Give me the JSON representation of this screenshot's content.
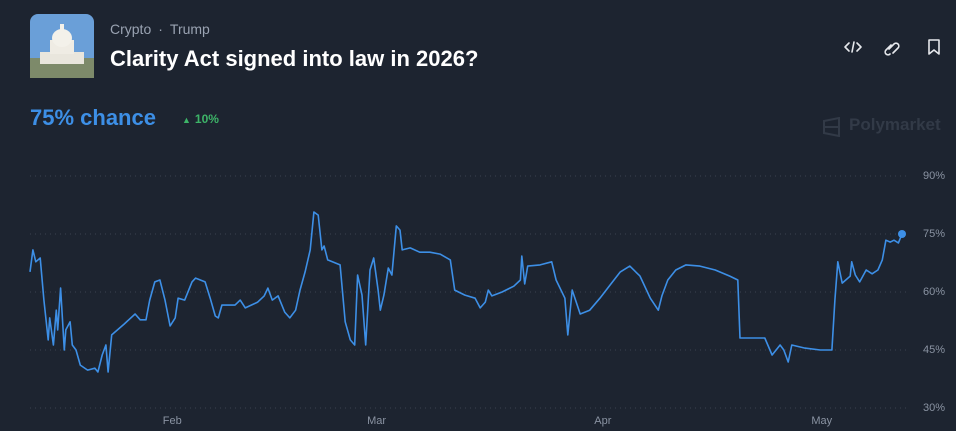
{
  "header": {
    "breadcrumb": [
      "Crypto",
      "Trump"
    ],
    "title": "Clarity Act signed into law in 2026?",
    "chance": "75% chance",
    "change": "10%"
  },
  "watermark": "Polymarket",
  "chart_data": {
    "type": "line",
    "color": "#3d8fe6",
    "grid": true,
    "xlim": [
      11.5,
      131
    ],
    "xticks": [
      {
        "value": 31,
        "label": "Feb"
      },
      {
        "value": 59,
        "label": "Mar"
      },
      {
        "value": 90,
        "label": "Apr"
      },
      {
        "value": 120,
        "label": "May"
      }
    ],
    "ylim": [
      30,
      90
    ],
    "yticks": [
      {
        "value": 30,
        "label": "30%"
      },
      {
        "value": 45,
        "label": "45%"
      },
      {
        "value": 60,
        "label": "60%"
      },
      {
        "value": 75,
        "label": "75%"
      },
      {
        "value": 90,
        "label": "90%"
      }
    ],
    "x": [
      11.5,
      11.9,
      12.3,
      12.9,
      13.4,
      14.0,
      14.2,
      14.7,
      15.1,
      15.3,
      15.7,
      16.2,
      16.4,
      17.0,
      17.3,
      17.8,
      18.4,
      19.4,
      20.4,
      20.8,
      21.4,
      21.9,
      22.2,
      22.7,
      24.4,
      25.9,
      26.6,
      27.4,
      27.9,
      28.6,
      29.3,
      30.0,
      30.7,
      31.4,
      31.8,
      32.7,
      33.7,
      34.2,
      35.5,
      36.2,
      36.9,
      37.3,
      37.8,
      39.6,
      40.3,
      41.0,
      42.7,
      43.6,
      44.1,
      44.7,
      45.5,
      46.4,
      47.1,
      47.9,
      48.5,
      49.2,
      49.9,
      50.4,
      51.0,
      51.5,
      51.8,
      52.3,
      54.0,
      54.7,
      55.4,
      56.0,
      56.4,
      57.0,
      57.5,
      58.1,
      58.6,
      59.2,
      59.5,
      60.0,
      60.6,
      61.1,
      61.7,
      62.2,
      62.5,
      63.6,
      64.9,
      66.3,
      67.7,
      69.1,
      69.7,
      71.1,
      72.5,
      73.2,
      73.9,
      74.3,
      74.8,
      76.2,
      77.8,
      78.7,
      78.9,
      79.3,
      79.7,
      81.4,
      83.0,
      83.6,
      84.8,
      85.2,
      85.8,
      86.9,
      88.2,
      89.6,
      91.0,
      92.4,
      93.7,
      95.1,
      96.5,
      97.6,
      98.1,
      98.9,
      100.0,
      101.4,
      103.3,
      105.4,
      107.4,
      108.5,
      108.8,
      112.2,
      113.2,
      114.3,
      114.8,
      115.4,
      115.9,
      117.7,
      119.8,
      121.4,
      121.8,
      122.2,
      122.8,
      123.9,
      124.1,
      124.6,
      125.2,
      126.1,
      126.9,
      127.7,
      128.3,
      128.8,
      129.4,
      129.9,
      130.5,
      131.0
    ],
    "values": [
      65.2,
      70.9,
      67.8,
      68.8,
      57.9,
      47.6,
      53.3,
      46.3,
      55.3,
      50.2,
      61.0,
      45.0,
      50.2,
      52.3,
      46.3,
      45.0,
      41.1,
      39.8,
      40.3,
      39.3,
      43.7,
      46.3,
      39.3,
      48.9,
      51.7,
      54.3,
      52.8,
      52.8,
      57.9,
      62.6,
      63.1,
      57.9,
      51.2,
      53.3,
      58.4,
      57.9,
      62.6,
      63.6,
      62.6,
      58.4,
      53.8,
      53.3,
      56.6,
      56.6,
      57.9,
      55.9,
      57.4,
      59.0,
      61.0,
      57.9,
      59.0,
      54.8,
      53.3,
      55.3,
      60.5,
      65.2,
      70.9,
      80.7,
      79.9,
      70.9,
      71.9,
      68.3,
      67.0,
      52.3,
      47.6,
      46.3,
      64.4,
      59.2,
      46.3,
      65.7,
      68.8,
      60.5,
      55.3,
      59.2,
      66.2,
      64.4,
      77.1,
      76.0,
      70.9,
      71.4,
      70.3,
      70.3,
      69.8,
      68.3,
      60.5,
      59.2,
      58.4,
      55.9,
      57.4,
      60.5,
      59.0,
      60.0,
      61.5,
      63.1,
      69.3,
      62.1,
      66.7,
      67.0,
      67.8,
      63.1,
      58.4,
      48.9,
      60.5,
      54.3,
      55.3,
      58.4,
      61.8,
      65.2,
      66.7,
      64.1,
      58.4,
      55.3,
      59.0,
      63.1,
      65.7,
      67.0,
      66.7,
      65.7,
      64.1,
      63.1,
      48.1,
      48.1,
      43.7,
      46.3,
      45.0,
      41.9,
      46.3,
      45.5,
      45.0,
      45.0,
      57.9,
      67.8,
      62.3,
      64.1,
      67.8,
      64.4,
      62.6,
      65.7,
      64.7,
      65.7,
      68.3,
      73.4,
      72.9,
      73.4,
      72.7,
      75
    ]
  }
}
